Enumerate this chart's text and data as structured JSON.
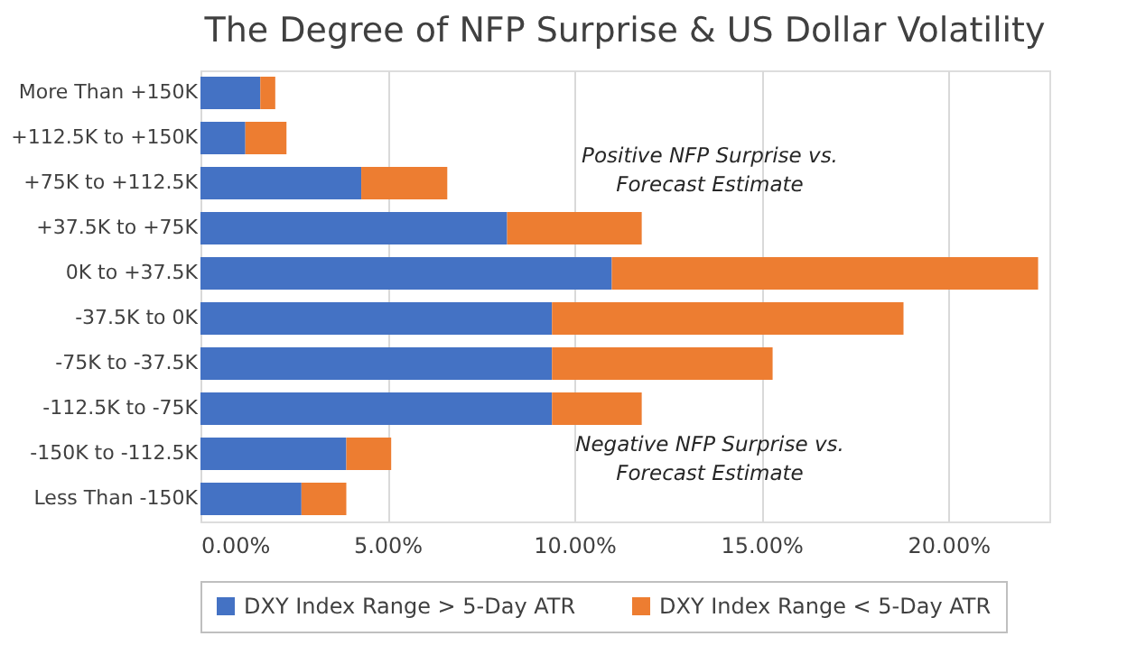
{
  "chart_data": {
    "type": "bar",
    "orientation": "horizontal",
    "stacked": true,
    "title": "The Degree of NFP Surprise & US Dollar Volatility",
    "categories": [
      "More Than +150K",
      "+112.5K to +150K",
      "+75K to +112.5K",
      "+37.5K to +75K",
      "0K to +37.5K",
      "-37.5K to 0K",
      "-75K to -37.5K",
      "-112.5K to -75K",
      "-150K to -112.5K",
      "Less Than -150K"
    ],
    "series": [
      {
        "name": "DXY Index Range > 5-Day ATR",
        "color": "#4472c4",
        "values": [
          1.6,
          1.2,
          4.3,
          8.2,
          11.0,
          9.4,
          9.4,
          9.4,
          3.9,
          2.7
        ]
      },
      {
        "name": "DXY Index Range < 5-Day ATR",
        "color": "#ed7d31",
        "values": [
          0.4,
          1.1,
          2.3,
          3.6,
          11.4,
          9.4,
          5.9,
          2.4,
          1.2,
          1.2
        ]
      }
    ],
    "xlim": [
      0,
      22.7
    ],
    "xticks": [
      {
        "value": 0,
        "label": "0.00%"
      },
      {
        "value": 5,
        "label": "5.00%"
      },
      {
        "value": 10,
        "label": "10.00%"
      },
      {
        "value": 15,
        "label": "15.00%"
      },
      {
        "value": 20,
        "label": "20.00%"
      }
    ],
    "grid": "x",
    "legend": "bottom",
    "annotations": [
      "Positive NFP Surprise vs. Forecast Estimate",
      "Negative NFP Surprise vs. Forecast Estimate"
    ]
  }
}
